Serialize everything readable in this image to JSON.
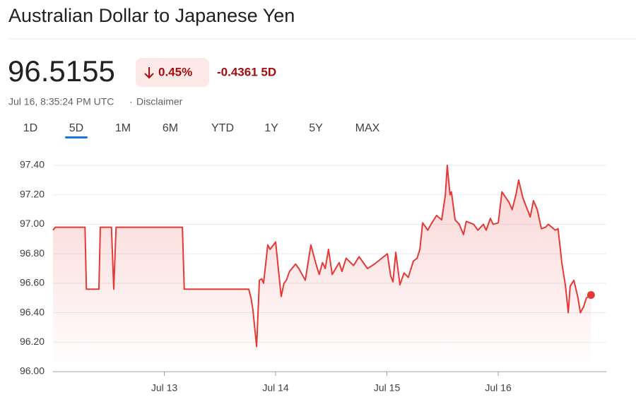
{
  "header": {
    "title": "Australian Dollar to Japanese Yen",
    "price": "96.5155",
    "change_percent": "0.45%",
    "change_abs": "-0.4361 5D",
    "timestamp": "Jul 16, 8:35:24 PM UTC",
    "separator": "·",
    "disclaimer": "Disclaimer"
  },
  "tabs": {
    "items": [
      "1D",
      "5D",
      "1M",
      "6M",
      "YTD",
      "1Y",
      "5Y",
      "MAX"
    ],
    "active": 1
  },
  "chart_data": {
    "type": "line",
    "color": "#e53935",
    "x": [
      0,
      0.5,
      6.9,
      7.2,
      9.9,
      10.2,
      12.6,
      13.1,
      13.6,
      27.9,
      28.3,
      42.2,
      42.7,
      43.1,
      43.9,
      44.5,
      45.0,
      45.4,
      46.3,
      46.8,
      48.0,
      49.2,
      49.8,
      50.3,
      51.0,
      52.3,
      53.0,
      54.4,
      55.6,
      56.8,
      57.4,
      58.1,
      58.7,
      59.4,
      60.2,
      61.7,
      62.3,
      63.2,
      64.8,
      66.0,
      67.8,
      69.3,
      72.1,
      72.8,
      73.3,
      73.9,
      74.8,
      75.7,
      76.6,
      77.7,
      78.5,
      79.1,
      79.7,
      80.8,
      81.5,
      82.7,
      83.8,
      84.6,
      85.0,
      85.6,
      85.9,
      86.7,
      87.6,
      88.5,
      89.1,
      90.7,
      91.6,
      92.8,
      93.4,
      94.3,
      94.9,
      96.0,
      96.8,
      98.3,
      99.0,
      99.8,
      100.4,
      101.3,
      102.9,
      103.6,
      104.4,
      105.3,
      106.2,
      106.8,
      108.3,
      108.9,
      109.7,
      110.5,
      111.1,
      111.5,
      112.3,
      113.2,
      113.7,
      114.4,
      115.0,
      116.0
    ],
    "values": [
      96.96,
      96.98,
      96.98,
      96.56,
      96.56,
      96.98,
      96.98,
      96.56,
      96.98,
      96.98,
      96.56,
      96.56,
      96.5,
      96.42,
      96.17,
      96.62,
      96.63,
      96.6,
      96.86,
      96.83,
      96.88,
      96.51,
      96.6,
      96.62,
      96.68,
      96.73,
      96.7,
      96.62,
      96.86,
      96.72,
      96.66,
      96.74,
      96.7,
      96.83,
      96.66,
      96.74,
      96.68,
      96.77,
      96.72,
      96.78,
      96.7,
      96.73,
      96.8,
      96.65,
      96.61,
      96.81,
      96.59,
      96.67,
      96.64,
      96.75,
      96.77,
      96.83,
      97.01,
      96.96,
      97.0,
      97.06,
      97.03,
      97.2,
      97.4,
      97.2,
      97.22,
      97.03,
      97.0,
      96.93,
      97.02,
      97.0,
      96.96,
      97.0,
      96.96,
      97.04,
      97.0,
      97.01,
      97.22,
      97.15,
      97.1,
      97.2,
      97.3,
      97.18,
      97.05,
      97.16,
      97.1,
      96.97,
      96.98,
      97.0,
      96.96,
      96.97,
      96.74,
      96.58,
      96.4,
      96.58,
      96.62,
      96.5,
      96.4,
      96.44,
      96.5,
      96.52
    ],
    "xlim": [
      0,
      119.3
    ],
    "xticks": [
      {
        "value": 24,
        "label": "Jul 13"
      },
      {
        "value": 48,
        "label": "Jul 14"
      },
      {
        "value": 72,
        "label": "Jul 15"
      },
      {
        "value": 96,
        "label": "Jul 16"
      }
    ],
    "ylim": [
      96,
      97.4
    ],
    "yticks": [
      {
        "value": 96,
        "label": "96.00"
      },
      {
        "value": 96.2,
        "label": "96.20"
      },
      {
        "value": 96.4,
        "label": "96.40"
      },
      {
        "value": 96.6,
        "label": "96.60"
      },
      {
        "value": 96.8,
        "label": "96.80"
      },
      {
        "value": 97,
        "label": "97.00"
      },
      {
        "value": 97.2,
        "label": "97.20"
      },
      {
        "value": 97.4,
        "label": "97.40"
      }
    ],
    "grid": true
  }
}
